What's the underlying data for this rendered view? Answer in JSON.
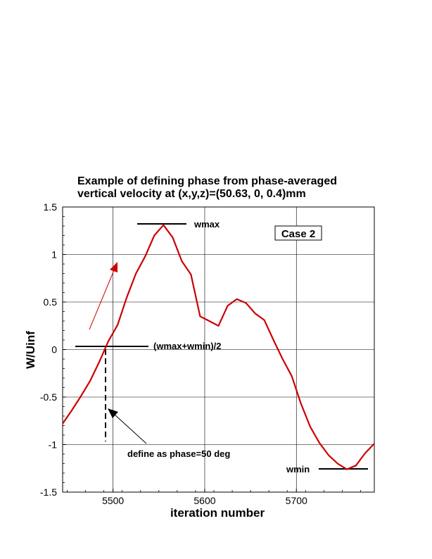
{
  "chart_data": {
    "type": "line",
    "title_line1": "Example of defining phase from phase-averaged",
    "title_line2": "vertical velocity at (x,y,z)=(50.63, 0, 0.4)mm",
    "xlabel": "iteration number",
    "ylabel": "W/Uinf",
    "xlim": [
      5445,
      5785
    ],
    "ylim": [
      -1.5,
      1.5
    ],
    "xticks": [
      5500,
      5600,
      5700
    ],
    "yticks": [
      1.5,
      1,
      0.5,
      0,
      -0.5,
      -1,
      -1.5
    ],
    "ytick_labels": [
      "1.5",
      "1",
      "0.5",
      "0",
      "-0.5",
      "-1",
      "-1.5"
    ],
    "xtick_labels": [
      "5500",
      "5600",
      "5700"
    ],
    "grid": true,
    "series": [
      {
        "color": "#cc0000",
        "x": [
          5445,
          5455,
          5465,
          5475,
          5485,
          5495,
          5505,
          5515,
          5525,
          5535,
          5545,
          5555,
          5565,
          5575,
          5585,
          5595,
          5605,
          5615,
          5625,
          5635,
          5645,
          5655,
          5665,
          5675,
          5685,
          5695,
          5705,
          5715,
          5725,
          5735,
          5745,
          5755,
          5765,
          5775,
          5785
        ],
        "y": [
          -0.78,
          -0.64,
          -0.49,
          -0.33,
          -0.13,
          0.09,
          0.26,
          0.55,
          0.8,
          0.98,
          1.2,
          1.31,
          1.18,
          0.93,
          0.79,
          0.35,
          0.3,
          0.25,
          0.46,
          0.53,
          0.49,
          0.38,
          0.31,
          0.1,
          -0.1,
          -0.28,
          -0.57,
          -0.81,
          -0.98,
          -1.11,
          -1.2,
          -1.26,
          -1.22,
          -1.09,
          -0.99
        ]
      }
    ],
    "annotations": {
      "wmax": "wmax",
      "wmid": "(wmax+wmin)/2",
      "wmin": "wmin",
      "phase": "define as phase=50 deg",
      "case": "Case 2"
    }
  }
}
